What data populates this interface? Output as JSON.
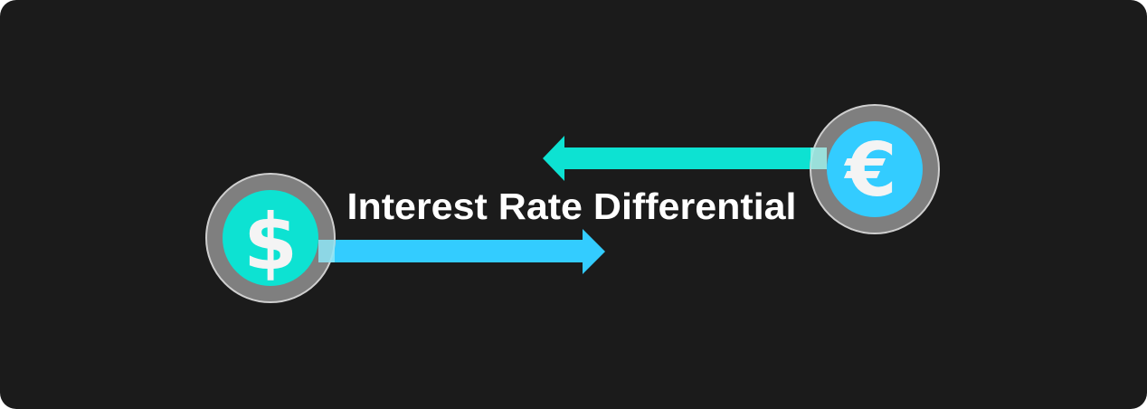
{
  "title": "Interest Rate Differential",
  "coins": {
    "dollar": {
      "symbol": "$",
      "color": "#0de2d2"
    },
    "euro": {
      "symbol": "€",
      "color": "#33ccff"
    }
  },
  "arrows": {
    "dollar_to_right": {
      "direction": "right",
      "color": "#33ccff"
    },
    "euro_to_left": {
      "direction": "left",
      "color": "#0de2d2"
    }
  },
  "colors": {
    "background": "#1b1b1b",
    "ring": "#7f7f7f"
  }
}
